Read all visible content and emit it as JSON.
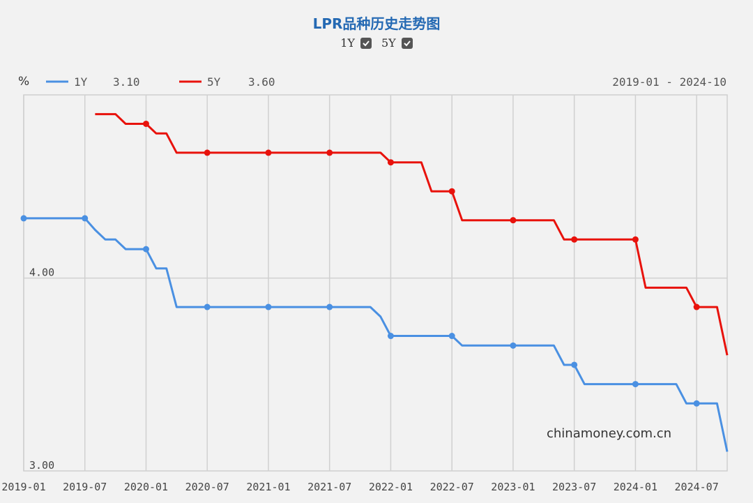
{
  "title": "LPR品种历史走势图",
  "toggles": [
    {
      "label": "1Y",
      "checked": true
    },
    {
      "label": "5Y",
      "checked": true
    }
  ],
  "unit": "%",
  "legend": [
    {
      "name": "1Y",
      "value": "3.10",
      "color": "#4a90e2"
    },
    {
      "name": "5Y",
      "value": "3.60",
      "color": "#e8120c"
    }
  ],
  "date_range": "2019-01 - 2024-10",
  "watermark": "chinamoney.com.cn",
  "chart_data": {
    "type": "line",
    "xlim": [
      "2019-01",
      "2024-10"
    ],
    "ylim": [
      3.0,
      4.95
    ],
    "y_ticks": [
      {
        "value": 3.0,
        "label": "3.00"
      },
      {
        "value": 4.0,
        "label": "4.00"
      }
    ],
    "x_ticks": [
      "2019-01",
      "2019-07",
      "2020-01",
      "2020-07",
      "2021-01",
      "2021-07",
      "2022-01",
      "2022-07",
      "2023-01",
      "2023-07",
      "2024-01",
      "2024-07"
    ],
    "grid": true,
    "series": [
      {
        "name": "1Y",
        "color": "#4a90e2",
        "points": [
          [
            "2019-01",
            4.31
          ],
          [
            "2019-07",
            4.31
          ],
          [
            "2019-08",
            4.25
          ],
          [
            "2019-09",
            4.2
          ],
          [
            "2019-10",
            4.2
          ],
          [
            "2019-11",
            4.15
          ],
          [
            "2019-12",
            4.15
          ],
          [
            "2020-01",
            4.15
          ],
          [
            "2020-02",
            4.05
          ],
          [
            "2020-03",
            4.05
          ],
          [
            "2020-04",
            3.85
          ],
          [
            "2020-07",
            3.85
          ],
          [
            "2021-01",
            3.85
          ],
          [
            "2021-07",
            3.85
          ],
          [
            "2021-11",
            3.85
          ],
          [
            "2021-12",
            3.8
          ],
          [
            "2022-01",
            3.7
          ],
          [
            "2022-07",
            3.7
          ],
          [
            "2022-08",
            3.65
          ],
          [
            "2023-01",
            3.65
          ],
          [
            "2023-05",
            3.65
          ],
          [
            "2023-06",
            3.55
          ],
          [
            "2023-07",
            3.55
          ],
          [
            "2023-08",
            3.45
          ],
          [
            "2024-01",
            3.45
          ],
          [
            "2024-05",
            3.45
          ],
          [
            "2024-06",
            3.35
          ],
          [
            "2024-07",
            3.35
          ],
          [
            "2024-09",
            3.35
          ],
          [
            "2024-10",
            3.1
          ]
        ],
        "markers": [
          "2019-01",
          "2019-07",
          "2020-01",
          "2020-07",
          "2021-01",
          "2021-07",
          "2022-01",
          "2022-07",
          "2023-01",
          "2023-07",
          "2024-01",
          "2024-07"
        ]
      },
      {
        "name": "5Y",
        "color": "#e8120c",
        "points": [
          [
            "2019-08",
            4.85
          ],
          [
            "2019-10",
            4.85
          ],
          [
            "2019-11",
            4.8
          ],
          [
            "2020-01",
            4.8
          ],
          [
            "2020-02",
            4.75
          ],
          [
            "2020-03",
            4.75
          ],
          [
            "2020-04",
            4.65
          ],
          [
            "2020-07",
            4.65
          ],
          [
            "2021-01",
            4.65
          ],
          [
            "2021-07",
            4.65
          ],
          [
            "2021-12",
            4.65
          ],
          [
            "2022-01",
            4.6
          ],
          [
            "2022-04",
            4.6
          ],
          [
            "2022-05",
            4.45
          ],
          [
            "2022-07",
            4.45
          ],
          [
            "2022-08",
            4.3
          ],
          [
            "2023-01",
            4.3
          ],
          [
            "2023-05",
            4.3
          ],
          [
            "2023-06",
            4.2
          ],
          [
            "2023-07",
            4.2
          ],
          [
            "2024-01",
            4.2
          ],
          [
            "2024-02",
            3.95
          ],
          [
            "2024-06",
            3.95
          ],
          [
            "2024-07",
            3.85
          ],
          [
            "2024-09",
            3.85
          ],
          [
            "2024-10",
            3.6
          ]
        ],
        "markers": [
          "2020-01",
          "2020-07",
          "2021-01",
          "2021-07",
          "2022-01",
          "2022-07",
          "2023-01",
          "2023-07",
          "2024-01",
          "2024-07"
        ]
      }
    ]
  }
}
